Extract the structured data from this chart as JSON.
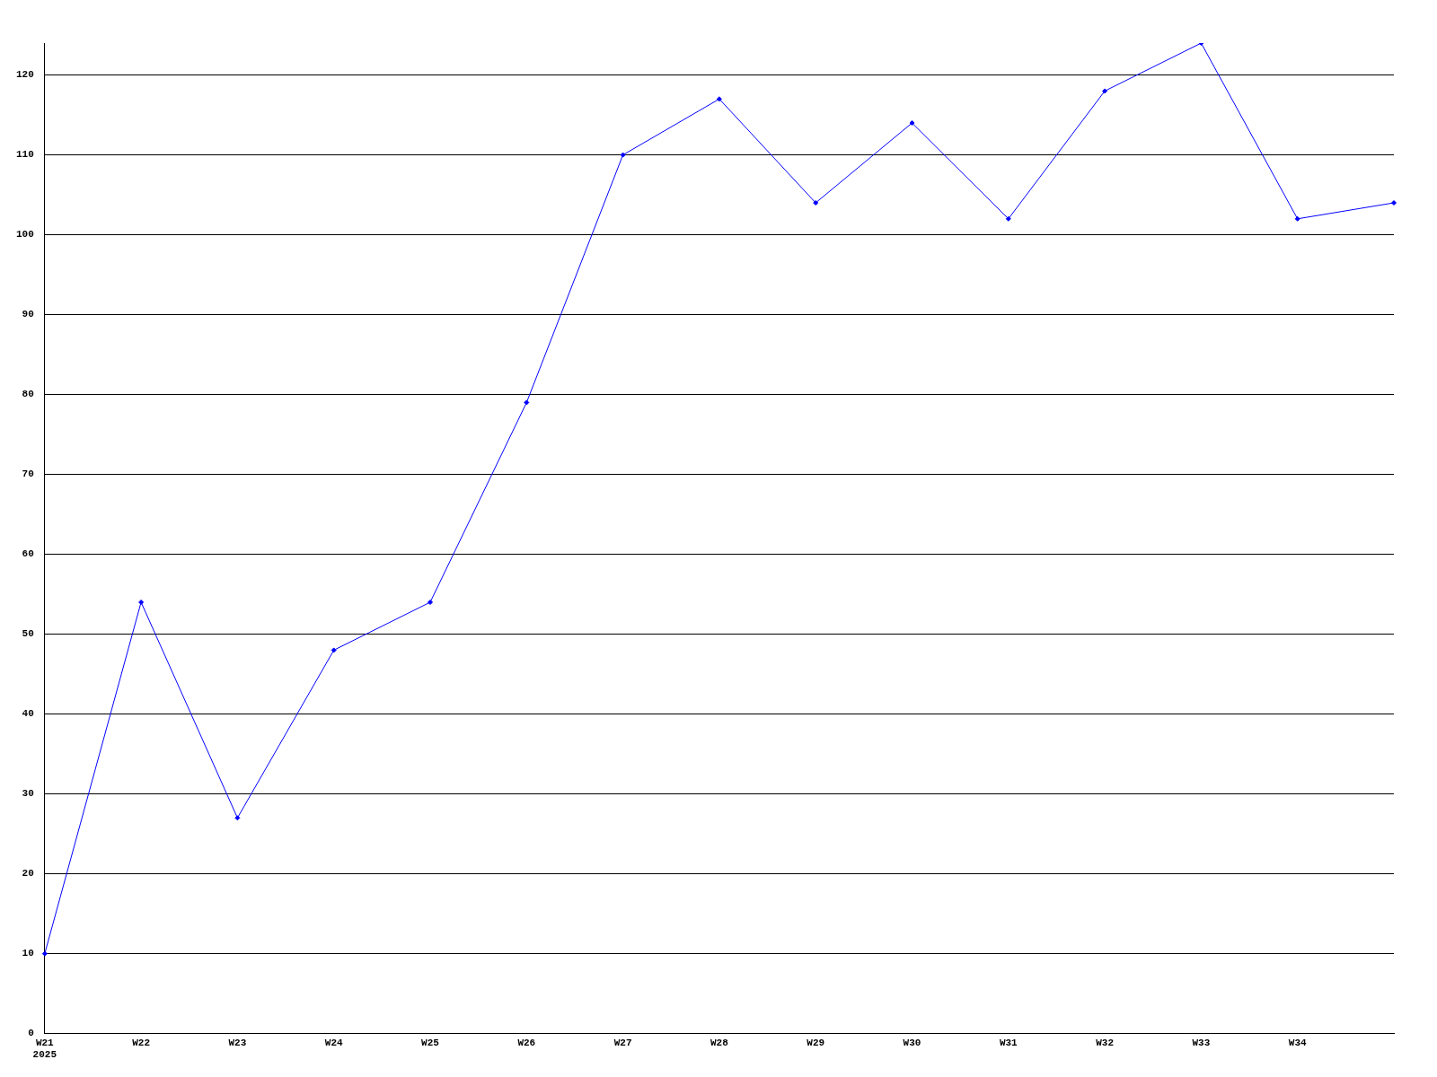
{
  "chart_data": {
    "type": "line",
    "categories": [
      "W21\n2025",
      "W22",
      "W23",
      "W24",
      "W25",
      "W26",
      "W27",
      "W28",
      "W29",
      "W30",
      "W31",
      "W32",
      "W33",
      "W34",
      null
    ],
    "series": [
      {
        "color": "#0000ff",
        "values": [
          10,
          54,
          27,
          48,
          54,
          79,
          110,
          117,
          104,
          114,
          102,
          118,
          124,
          102,
          104
        ]
      }
    ],
    "ylim": [
      0,
      124
    ],
    "yticks": [
      0,
      10,
      20,
      30,
      40,
      50,
      60,
      70,
      80,
      90,
      100,
      110,
      120
    ],
    "grid": "y",
    "legend": false,
    "marker": "diamond",
    "line_style": "solid"
  }
}
